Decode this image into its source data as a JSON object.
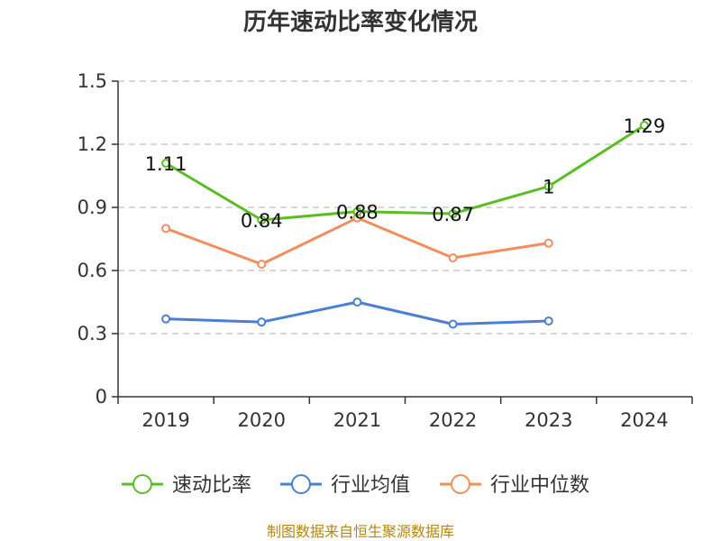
{
  "chart_data": {
    "type": "line",
    "title": "历年速动比率变化情况",
    "categories": [
      "2019",
      "2020",
      "2021",
      "2022",
      "2023",
      "2024"
    ],
    "ylim": [
      0,
      1.5
    ],
    "yticks": [
      "0",
      "0.3",
      "0.6",
      "0.9",
      "1.2",
      "1.5"
    ],
    "grid": true,
    "legend_position": "bottom",
    "series": [
      {
        "name": "速动比率",
        "color": "#5cbd22",
        "values": [
          1.11,
          0.84,
          0.88,
          0.87,
          1.0,
          1.29
        ],
        "labels": [
          "1.11",
          "0.84",
          "0.88",
          "0.87",
          "1",
          "1.29"
        ]
      },
      {
        "name": "行业均值",
        "color": "#4a7fd6",
        "values": [
          0.37,
          0.355,
          0.45,
          0.345,
          0.36,
          null
        ]
      },
      {
        "name": "行业中位数",
        "color": "#f28e5c",
        "values": [
          0.8,
          0.63,
          0.85,
          0.66,
          0.73,
          null
        ]
      }
    ]
  },
  "source": "制图数据来自恒生聚源数据库"
}
